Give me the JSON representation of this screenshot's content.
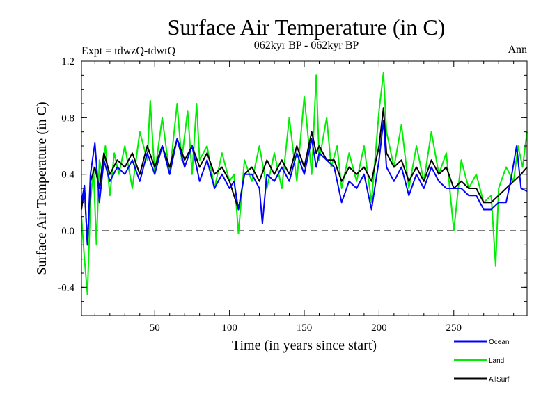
{
  "chart_data": {
    "type": "line",
    "title": "Surface Air Temperature (in C)",
    "subtitle": "062kyr BP - 062kyr BP",
    "experiment": "Expt = tdwzQ-tdwtQ",
    "period": "Ann",
    "xlabel": "Time (in years since start)",
    "ylabel": "Surface Air Temperature (in C)",
    "xlim": [
      1,
      299
    ],
    "ylim": [
      -0.6,
      1.2
    ],
    "xticks": [
      50,
      100,
      150,
      200,
      250
    ],
    "xtick_labels": [
      "50",
      "100",
      "150",
      "200",
      "250"
    ],
    "yticks": [
      -0.4,
      0.0,
      0.4,
      0.8,
      1.2
    ],
    "ytick_labels": [
      "-0.4",
      "0.0",
      "0.4",
      "0.8",
      "1.2"
    ],
    "zero_line": 0.0,
    "legend": [
      {
        "label": "Ocean",
        "color": "#0000ff"
      },
      {
        "label": "Land",
        "color": "#00ee00"
      },
      {
        "label": "AllSurf",
        "color": "#000000"
      }
    ],
    "series": [
      {
        "name": "Land",
        "color": "#00ee00",
        "x": [
          1,
          3,
          5,
          7,
          9,
          11,
          13,
          15,
          17,
          20,
          23,
          26,
          30,
          35,
          40,
          45,
          47,
          50,
          55,
          60,
          65,
          68,
          72,
          75,
          78,
          80,
          85,
          90,
          95,
          100,
          103,
          106,
          110,
          115,
          120,
          125,
          130,
          135,
          140,
          145,
          150,
          155,
          158,
          160,
          165,
          168,
          172,
          175,
          180,
          185,
          190,
          195,
          200,
          203,
          205,
          210,
          215,
          220,
          225,
          230,
          235,
          240,
          245,
          250,
          255,
          260,
          265,
          270,
          275,
          278,
          280,
          285,
          290,
          293,
          296,
          299
        ],
        "values": [
          0.1,
          -0.2,
          -0.45,
          0.2,
          0.45,
          -0.1,
          0.5,
          0.4,
          0.6,
          0.25,
          0.55,
          0.4,
          0.6,
          0.3,
          0.7,
          0.5,
          0.92,
          0.4,
          0.8,
          0.4,
          0.9,
          0.5,
          0.85,
          0.4,
          0.9,
          0.5,
          0.6,
          0.3,
          0.55,
          0.35,
          0.4,
          -0.02,
          0.5,
          0.35,
          0.6,
          0.3,
          0.55,
          0.3,
          0.8,
          0.35,
          0.95,
          0.4,
          1.1,
          0.5,
          0.8,
          0.45,
          0.6,
          0.3,
          0.55,
          0.35,
          0.6,
          0.2,
          0.85,
          1.12,
          0.7,
          0.45,
          0.75,
          0.3,
          0.6,
          0.35,
          0.7,
          0.4,
          0.55,
          0.0,
          0.5,
          0.3,
          0.4,
          0.2,
          0.25,
          -0.25,
          0.3,
          0.45,
          0.35,
          0.6,
          0.45,
          0.7
        ]
      },
      {
        "name": "AllSurf",
        "color": "#000000",
        "x": [
          1,
          3,
          5,
          7,
          10,
          13,
          16,
          20,
          25,
          30,
          35,
          40,
          45,
          50,
          55,
          60,
          65,
          70,
          75,
          80,
          85,
          90,
          95,
          100,
          106,
          110,
          115,
          120,
          125,
          130,
          135,
          140,
          145,
          150,
          155,
          158,
          160,
          165,
          170,
          175,
          180,
          185,
          190,
          195,
          200,
          203,
          205,
          210,
          215,
          220,
          225,
          230,
          235,
          240,
          245,
          250,
          255,
          260,
          265,
          270,
          275,
          280,
          285,
          290,
          295,
          299
        ],
        "values": [
          0.15,
          0.3,
          -0.1,
          0.35,
          0.45,
          0.3,
          0.55,
          0.4,
          0.5,
          0.45,
          0.55,
          0.4,
          0.6,
          0.45,
          0.6,
          0.45,
          0.65,
          0.5,
          0.6,
          0.45,
          0.55,
          0.4,
          0.45,
          0.35,
          0.15,
          0.4,
          0.45,
          0.35,
          0.5,
          0.4,
          0.5,
          0.4,
          0.6,
          0.45,
          0.7,
          0.55,
          0.6,
          0.5,
          0.5,
          0.35,
          0.45,
          0.4,
          0.45,
          0.35,
          0.6,
          0.87,
          0.55,
          0.45,
          0.5,
          0.35,
          0.45,
          0.35,
          0.5,
          0.4,
          0.45,
          0.3,
          0.35,
          0.3,
          0.3,
          0.2,
          0.2,
          0.25,
          0.3,
          0.35,
          0.4,
          0.45
        ]
      },
      {
        "name": "Ocean",
        "color": "#0000ff",
        "x": [
          1,
          3,
          5,
          7,
          10,
          13,
          16,
          20,
          25,
          30,
          35,
          40,
          45,
          50,
          55,
          60,
          65,
          70,
          75,
          80,
          85,
          90,
          95,
          100,
          103,
          106,
          110,
          115,
          120,
          122,
          125,
          130,
          135,
          140,
          145,
          150,
          155,
          158,
          160,
          165,
          170,
          175,
          180,
          185,
          190,
          195,
          200,
          203,
          205,
          210,
          215,
          220,
          225,
          230,
          235,
          240,
          245,
          250,
          255,
          260,
          265,
          270,
          275,
          280,
          285,
          288,
          292,
          295,
          299
        ],
        "values": [
          0.2,
          0.32,
          -0.1,
          0.4,
          0.62,
          0.2,
          0.5,
          0.35,
          0.45,
          0.4,
          0.5,
          0.35,
          0.55,
          0.4,
          0.6,
          0.4,
          0.65,
          0.45,
          0.6,
          0.35,
          0.5,
          0.3,
          0.4,
          0.3,
          0.35,
          0.15,
          0.4,
          0.4,
          0.3,
          0.05,
          0.4,
          0.35,
          0.45,
          0.35,
          0.55,
          0.4,
          0.65,
          0.45,
          0.55,
          0.5,
          0.45,
          0.2,
          0.35,
          0.3,
          0.4,
          0.15,
          0.5,
          0.78,
          0.45,
          0.35,
          0.45,
          0.25,
          0.4,
          0.3,
          0.45,
          0.35,
          0.3,
          0.3,
          0.3,
          0.25,
          0.25,
          0.15,
          0.15,
          0.2,
          0.2,
          0.35,
          0.6,
          0.3,
          0.28
        ]
      }
    ]
  }
}
